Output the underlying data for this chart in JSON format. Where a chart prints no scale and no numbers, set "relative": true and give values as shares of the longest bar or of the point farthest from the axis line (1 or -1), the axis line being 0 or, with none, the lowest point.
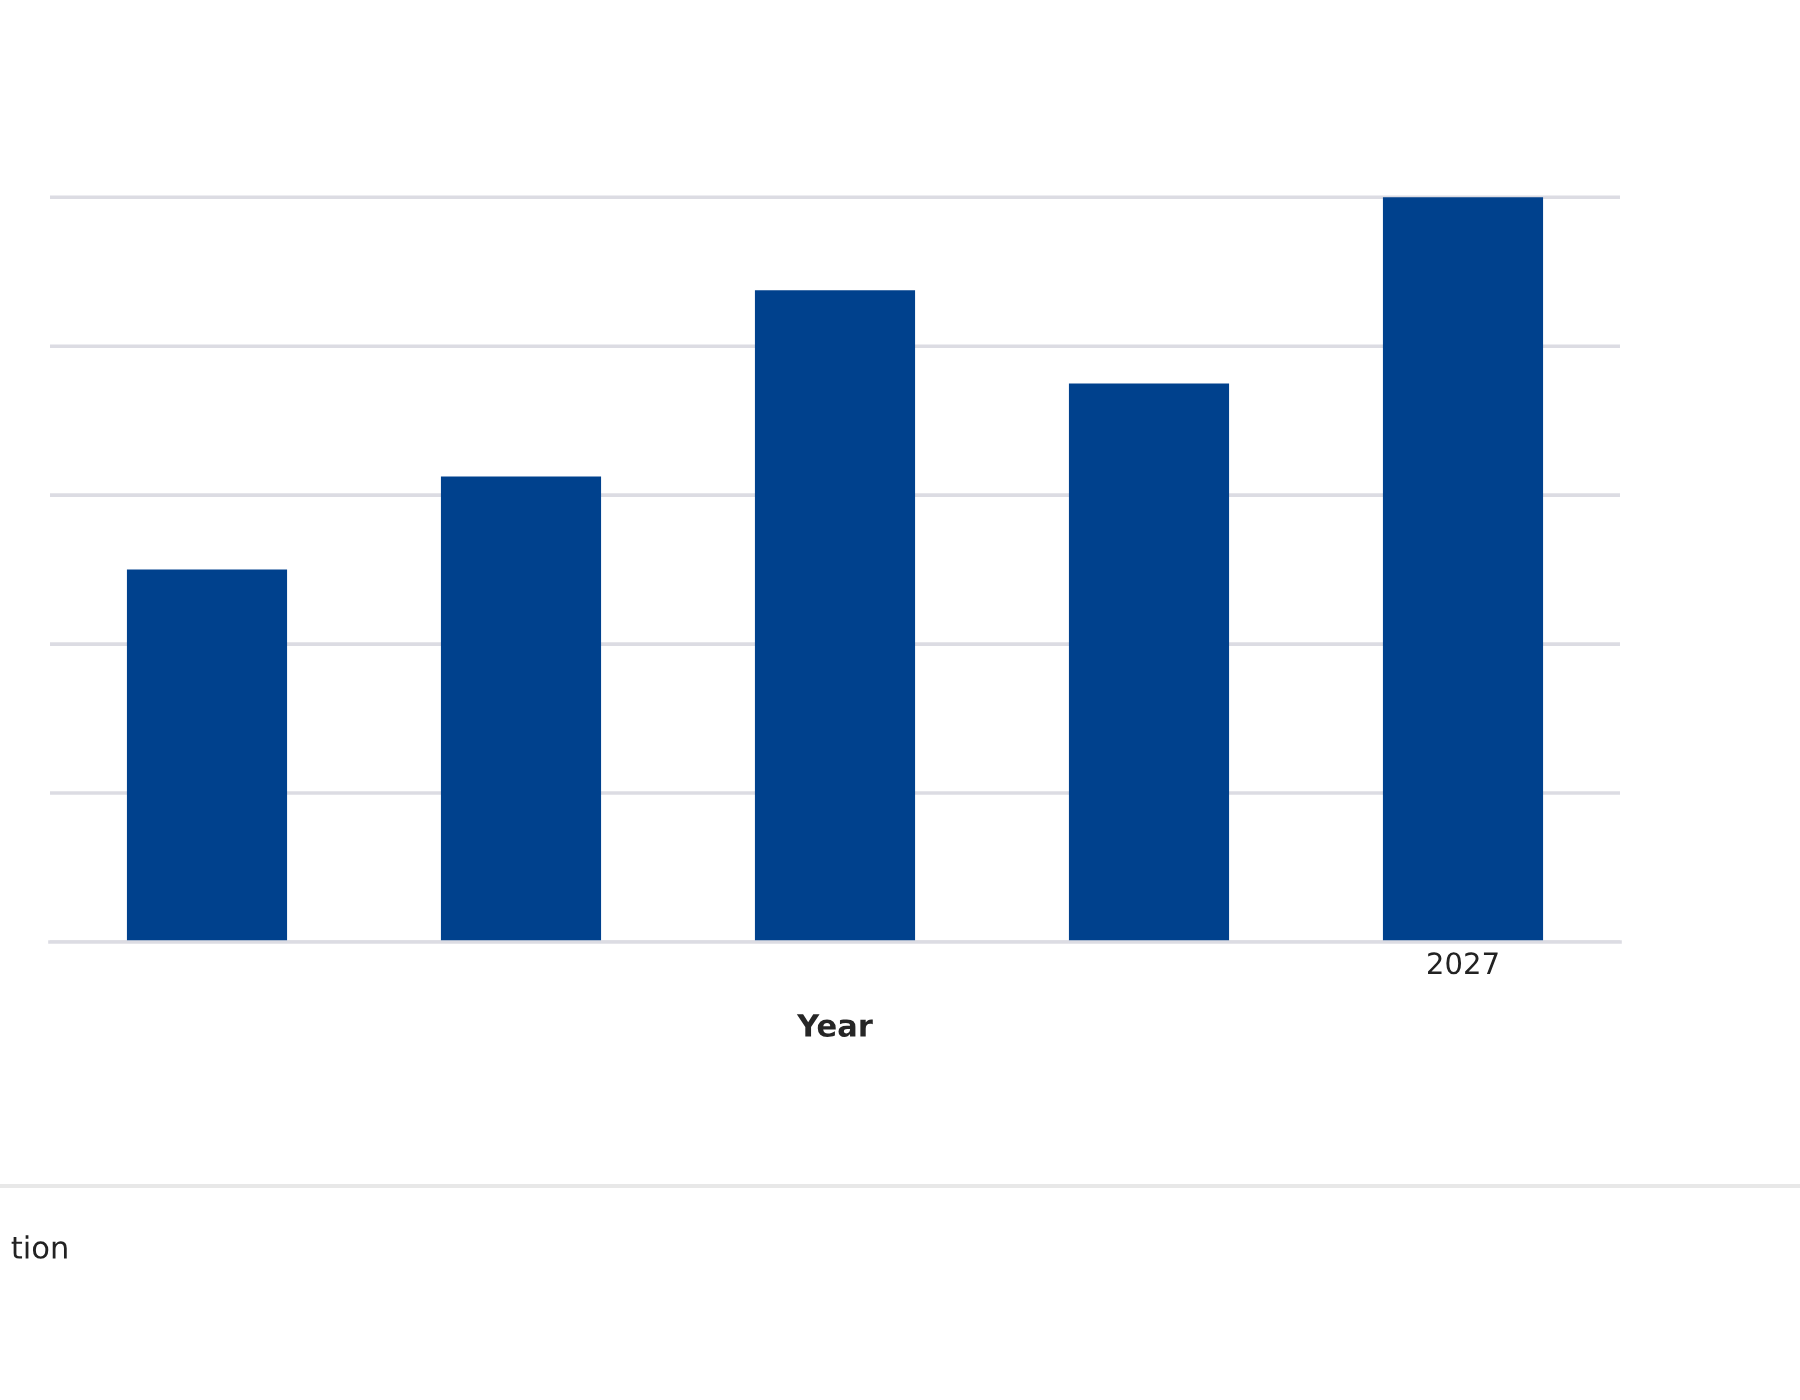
{
  "chart_data": {
    "type": "bar",
    "xlabel": "Year",
    "categories": [
      null,
      null,
      null,
      null,
      "2027"
    ],
    "values": [
      0.5,
      0.625,
      0.875,
      0.75,
      1
    ],
    "color": "#00418d",
    "relative": true,
    "grid": "y",
    "annotations": [
      "tion"
    ]
  }
}
